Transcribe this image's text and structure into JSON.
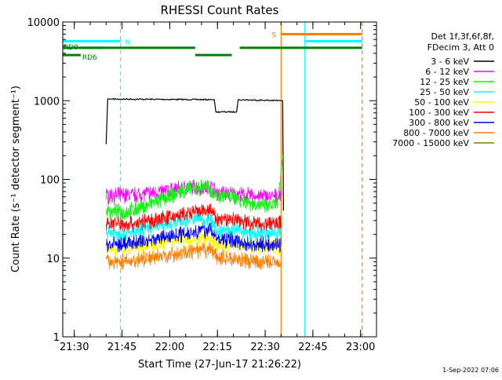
{
  "chart_data": {
    "type": "line",
    "title": "RHESSI Count Rates",
    "xlabel": "Start Time (27-Jun-17 21:26:22)",
    "ylabel": "Count Rate (s⁻¹ detector segment⁻¹)",
    "yscale": "log",
    "ylim": [
      1,
      10000
    ],
    "xlim": [
      "21:26:22",
      "23:05:00"
    ],
    "x_ticks": [
      "21:30",
      "21:45",
      "22:00",
      "22:15",
      "22:30",
      "22:45",
      "23:00"
    ],
    "y_ticks": [
      "1",
      "10",
      "100",
      "1000",
      "10000"
    ],
    "grid": false,
    "legend_position": "right",
    "legend_header": [
      "Det 1f,3f,6f,8f,",
      "FDecim 3, Att 0"
    ],
    "timestamp": "1-Sep-2022 07:06",
    "series": [
      {
        "name": "3 - 6 keV",
        "color": "#000000",
        "level": "high",
        "points": [
          [
            "21:40:00",
            280
          ],
          [
            "21:40:30",
            1050
          ],
          [
            "22:14:00",
            1030
          ],
          [
            "22:14:30",
            720
          ],
          [
            "22:21:00",
            720
          ],
          [
            "22:21:30",
            1030
          ],
          [
            "22:35:30",
            1000
          ],
          [
            "22:35:45",
            40
          ]
        ]
      },
      {
        "name": "6 - 12 keV",
        "color": "#ff00ff",
        "points": [
          [
            "21:40:00",
            62
          ],
          [
            "21:50:00",
            64
          ],
          [
            "22:00:00",
            72
          ],
          [
            "22:05:00",
            78
          ],
          [
            "22:13:00",
            80
          ],
          [
            "22:15:00",
            68
          ],
          [
            "22:20:00",
            65
          ],
          [
            "22:25:00",
            62
          ],
          [
            "22:33:00",
            60
          ],
          [
            "22:35:00",
            62
          ]
        ]
      },
      {
        "name": "12 - 25 keV",
        "color": "#00ff00",
        "points": [
          [
            "21:40:00",
            40
          ],
          [
            "21:45:00",
            38
          ],
          [
            "21:50:00",
            42
          ],
          [
            "22:00:00",
            60
          ],
          [
            "22:05:00",
            75
          ],
          [
            "22:12:00",
            80
          ],
          [
            "22:14:00",
            65
          ],
          [
            "22:20:00",
            60
          ],
          [
            "22:25:00",
            50
          ],
          [
            "22:30:00",
            45
          ],
          [
            "22:34:00",
            48
          ],
          [
            "22:35:30",
            200
          ]
        ]
      },
      {
        "name": "25 - 50 keV",
        "color": "#00ffff",
        "points": [
          [
            "21:40:00",
            22
          ],
          [
            "21:45:00",
            20
          ],
          [
            "21:50:00",
            22
          ],
          [
            "22:00:00",
            28
          ],
          [
            "22:08:00",
            32
          ],
          [
            "22:13:00",
            30
          ],
          [
            "22:15:00",
            22
          ],
          [
            "22:20:00",
            24
          ],
          [
            "22:25:00",
            20
          ],
          [
            "22:30:00",
            20
          ],
          [
            "22:35:00",
            22
          ]
        ]
      },
      {
        "name": "50 - 100 keV",
        "color": "#ffff00",
        "points": [
          [
            "21:40:00",
            13
          ],
          [
            "21:45:00",
            13
          ],
          [
            "21:50:00",
            14
          ],
          [
            "22:00:00",
            16
          ],
          [
            "22:05:00",
            18
          ],
          [
            "22:13:00",
            17
          ],
          [
            "22:15:00",
            14
          ],
          [
            "22:20:00",
            15
          ],
          [
            "22:30:00",
            14
          ],
          [
            "22:35:00",
            14
          ]
        ]
      },
      {
        "name": "100 - 300 keV",
        "color": "#ff0000",
        "points": [
          [
            "21:40:00",
            28
          ],
          [
            "21:45:00",
            27
          ],
          [
            "21:50:00",
            28
          ],
          [
            "22:00:00",
            33
          ],
          [
            "22:08:00",
            38
          ],
          [
            "22:13:00",
            40
          ],
          [
            "22:15:00",
            30
          ],
          [
            "22:20:00",
            32
          ],
          [
            "22:25:00",
            28
          ],
          [
            "22:30:00",
            27
          ],
          [
            "22:35:00",
            28
          ]
        ]
      },
      {
        "name": "300 - 800 keV",
        "color": "#0000ff",
        "points": [
          [
            "21:40:00",
            15
          ],
          [
            "21:45:00",
            15
          ],
          [
            "21:50:00",
            16
          ],
          [
            "22:00:00",
            19
          ],
          [
            "22:08:00",
            22
          ],
          [
            "22:13:00",
            23
          ],
          [
            "22:15:00",
            17
          ],
          [
            "22:20:00",
            17
          ],
          [
            "22:25:00",
            15
          ],
          [
            "22:30:00",
            15
          ],
          [
            "22:35:00",
            15
          ]
        ]
      },
      {
        "name": "800 - 7000 keV",
        "color": "#ff8000",
        "points": [
          [
            "21:40:00",
            9
          ],
          [
            "21:45:00",
            9
          ],
          [
            "21:50:00",
            9.5
          ],
          [
            "22:00:00",
            11
          ],
          [
            "22:08:00",
            12
          ],
          [
            "22:13:00",
            13
          ],
          [
            "22:15:00",
            10
          ],
          [
            "22:20:00",
            10
          ],
          [
            "22:25:00",
            9
          ],
          [
            "22:30:00",
            9
          ],
          [
            "22:35:00",
            9
          ]
        ]
      },
      {
        "name": "7000 - 15000 keV",
        "color": "#808000",
        "points": []
      }
    ],
    "vertical_markers": [
      {
        "time": "21:26:22",
        "color": "#00ffff",
        "style": "solid"
      },
      {
        "time": "21:44:30",
        "color": "#00ffff",
        "style": "dashed"
      },
      {
        "time": "22:35:00",
        "color": "#ff8000",
        "style": "solid"
      },
      {
        "time": "22:42:30",
        "color": "#00ffff",
        "style": "solid"
      },
      {
        "time": "23:00:30",
        "color": "#ff8000",
        "style": "dashed"
      }
    ],
    "flag_bars": [
      {
        "label": "N",
        "color": "#00ffff",
        "y": 5700,
        "segments": [
          [
            "21:26:22",
            "21:44:30"
          ],
          [
            "22:42:30",
            "23:00:30"
          ]
        ]
      },
      {
        "label": "S",
        "color": "#ff8000",
        "y": 7000,
        "segments": [
          [
            "22:35:00",
            "23:00:30"
          ]
        ]
      },
      {
        "label": "RD0",
        "color": "#008000",
        "y": 4700,
        "segments": [
          [
            "21:26:22",
            "21:39:00"
          ],
          [
            "21:32:00",
            "22:08:00"
          ],
          [
            "22:22:00",
            "23:00:30"
          ]
        ]
      },
      {
        "label": "RD6",
        "color": "#008000",
        "y": 3800,
        "segments": [
          [
            "21:26:22",
            "21:32:00"
          ],
          [
            "22:08:00",
            "22:19:30"
          ]
        ]
      }
    ]
  }
}
